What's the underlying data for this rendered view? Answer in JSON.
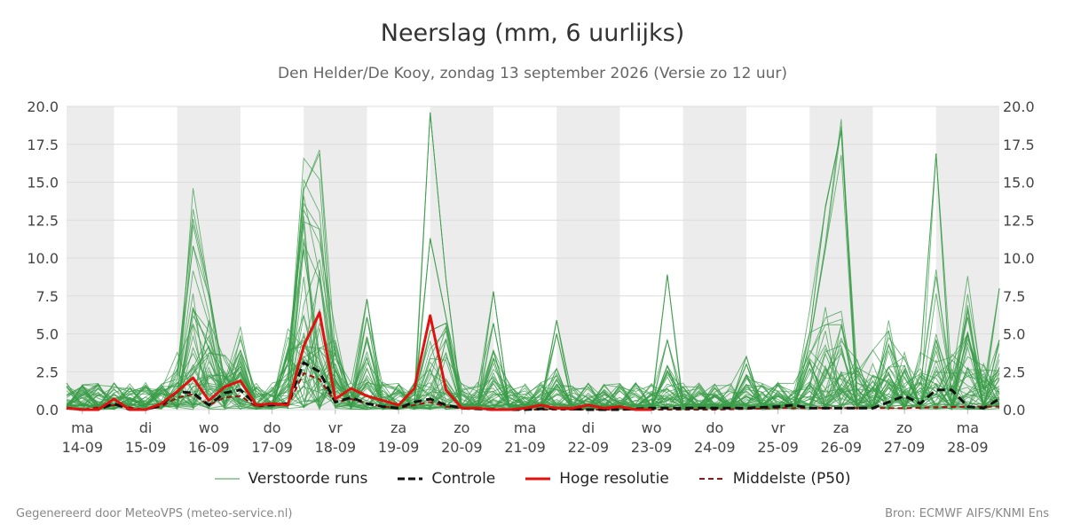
{
  "header": {
    "title": "Neerslag (mm, 6 uurlijks)",
    "subtitle": "Den Helder/De Kooy, zondag 13 september 2026 (Versie zo 12 uur)"
  },
  "legend": [
    {
      "label": "Verstoorde runs",
      "color": "#3a9c48",
      "style": "thin"
    },
    {
      "label": "Controle",
      "color": "#111111",
      "style": "dashed-thick"
    },
    {
      "label": "Hoge resolutie",
      "color": "#e0110f",
      "style": "thick"
    },
    {
      "label": "Middelste (P50)",
      "color": "#a01010",
      "style": "dashed"
    }
  ],
  "footer": {
    "left": "Gegenereerd door MeteoVPS (meteo-service.nl)",
    "right": "Bron: ECMWF AIFS/KNMI Ens"
  },
  "chart_data": {
    "type": "line",
    "ylim": [
      0,
      20
    ],
    "yticks": [
      "0.0",
      "2.5",
      "5.0",
      "7.5",
      "10.0",
      "12.5",
      "15.0",
      "17.5",
      "20.0"
    ],
    "xlim": [
      -0.25,
      14.5
    ],
    "days": [
      {
        "day": "ma",
        "date": "14-09"
      },
      {
        "day": "di",
        "date": "15-09"
      },
      {
        "day": "wo",
        "date": "16-09"
      },
      {
        "day": "do",
        "date": "17-09"
      },
      {
        "day": "vr",
        "date": "18-09"
      },
      {
        "day": "za",
        "date": "19-09"
      },
      {
        "day": "zo",
        "date": "20-09"
      },
      {
        "day": "ma",
        "date": "21-09"
      },
      {
        "day": "di",
        "date": "22-09"
      },
      {
        "day": "wo",
        "date": "23-09"
      },
      {
        "day": "do",
        "date": "24-09"
      },
      {
        "day": "vr",
        "date": "25-09"
      },
      {
        "day": "za",
        "date": "26-09"
      },
      {
        "day": "zo",
        "date": "27-09"
      },
      {
        "day": "ma",
        "date": "28-09"
      }
    ],
    "shaded_days": [
      0,
      2,
      4,
      6,
      8,
      10,
      12,
      14
    ],
    "series": [
      {
        "name": "Hoge resolutie",
        "color": "#e0110f",
        "x": [
          -0.25,
          0,
          0.25,
          0.5,
          0.75,
          1,
          1.25,
          1.5,
          1.75,
          2,
          2.25,
          2.5,
          2.75,
          3,
          3.25,
          3.5,
          3.75,
          4,
          4.25,
          4.5,
          4.75,
          5,
          5.25,
          5.5,
          5.75,
          6,
          6.25,
          6.5,
          6.75,
          7,
          7.25,
          7.5,
          7.75,
          8,
          8.25,
          8.5,
          8.75,
          9
        ],
        "values": [
          0.1,
          0,
          0,
          0.7,
          0,
          0,
          0.4,
          1.2,
          2.1,
          0.6,
          1.5,
          1.9,
          0.3,
          0.4,
          0.3,
          4.2,
          6.4,
          0.7,
          1.4,
          0.9,
          0.6,
          0.3,
          1.4,
          6.2,
          1.3,
          0.1,
          0.1,
          0,
          0,
          0.1,
          0.3,
          0.1,
          0.1,
          0.3,
          0.1,
          0.2,
          0,
          0
        ]
      },
      {
        "name": "Controle",
        "color": "#111111",
        "x": [
          -0.25,
          0,
          0.25,
          0.5,
          0.75,
          1,
          1.25,
          1.5,
          1.75,
          2,
          2.25,
          2.5,
          2.75,
          3,
          3.25,
          3.5,
          3.75,
          4,
          4.25,
          4.5,
          4.75,
          5,
          5.25,
          5.5,
          5.75,
          6,
          6.5,
          7,
          7.5,
          8,
          8.5,
          9,
          9.5,
          10,
          10.5,
          11,
          11.25,
          11.5,
          11.75,
          12,
          12.5,
          13,
          13.25,
          13.5,
          13.75,
          14,
          14.25,
          14.5
        ],
        "values": [
          0.1,
          0,
          0,
          0.4,
          0,
          0,
          0.3,
          1.2,
          1.1,
          0.3,
          1.1,
          1.3,
          0.3,
          0.3,
          0.4,
          3.1,
          2.5,
          0.5,
          0.8,
          0.4,
          0.2,
          0.1,
          0.5,
          0.7,
          0.3,
          0.1,
          0,
          0,
          0.1,
          0,
          0,
          0.1,
          0.1,
          0.1,
          0.1,
          0.2,
          0.3,
          0.1,
          0.1,
          0.1,
          0.1,
          0.9,
          0.4,
          1.3,
          1.3,
          0.2,
          0.1,
          0.7
        ]
      },
      {
        "name": "Middelste (P50)",
        "color": "#a01010",
        "x": [
          -0.25,
          0,
          0.5,
          1,
          1.25,
          1.5,
          1.75,
          2,
          2.25,
          2.5,
          2.75,
          3,
          3.25,
          3.5,
          3.75,
          4,
          4.25,
          4.5,
          4.75,
          5,
          5.25,
          5.5,
          5.75,
          6,
          7,
          8,
          9,
          10,
          11,
          12,
          13,
          14,
          14.5
        ],
        "values": [
          0.1,
          0,
          0.3,
          0,
          0.2,
          0.8,
          1.0,
          0.3,
          0.8,
          0.9,
          0.2,
          0.3,
          0.3,
          2.4,
          2.0,
          0.5,
          0.7,
          0.4,
          0.2,
          0.1,
          0.3,
          0.5,
          0.2,
          0.1,
          0,
          0,
          0,
          0,
          0.1,
          0.1,
          0.1,
          0.2,
          0.2
        ]
      }
    ],
    "perturbed_runs": {
      "name": "Verstoorde runs",
      "color": "#3a9c48",
      "count": 50,
      "x_step": 0.25,
      "peaks": [
        {
          "x": 0.75,
          "values": [
            1.4,
            1.0,
            0.8
          ]
        },
        {
          "x": 1.75,
          "values": [
            12.3,
            10.8,
            6.7
          ]
        },
        {
          "x": 2.0,
          "values": [
            7.9,
            6.3,
            4.0
          ]
        },
        {
          "x": 2.5,
          "values": [
            3.9,
            3.2,
            2.7
          ]
        },
        {
          "x": 3.5,
          "values": [
            14.5,
            12.4,
            11.0
          ]
        },
        {
          "x": 3.75,
          "values": [
            14.9,
            11.9,
            8.5
          ]
        },
        {
          "x": 4.5,
          "values": [
            7.3,
            6.1,
            4.8
          ]
        },
        {
          "x": 5.5,
          "values": [
            19.6,
            11.3,
            5.2
          ]
        },
        {
          "x": 5.75,
          "values": [
            8.6,
            6.1,
            5.7
          ]
        },
        {
          "x": 6.5,
          "values": [
            7.8,
            5.7,
            3.9
          ]
        },
        {
          "x": 7.5,
          "values": [
            5.9,
            5.0,
            2.7
          ]
        },
        {
          "x": 9.25,
          "values": [
            8.9,
            4.6,
            2.9
          ]
        },
        {
          "x": 10.5,
          "values": [
            3.5,
            3.0,
            2.3
          ]
        },
        {
          "x": 11.5,
          "values": [
            5.0,
            4.4,
            3.6
          ]
        },
        {
          "x": 11.75,
          "values": [
            13.3,
            10.6,
            5.6
          ]
        },
        {
          "x": 12.0,
          "values": [
            18.4,
            16.8,
            5.6
          ]
        },
        {
          "x": 12.75,
          "values": [
            5.2,
            4.3,
            2.8
          ]
        },
        {
          "x": 13.5,
          "values": [
            16.9,
            6.8,
            4.6
          ]
        },
        {
          "x": 14.0,
          "values": [
            6.9,
            6.1,
            5.1
          ]
        },
        {
          "x": 14.5,
          "values": [
            8.0,
            4.6,
            2.8
          ]
        }
      ]
    }
  }
}
